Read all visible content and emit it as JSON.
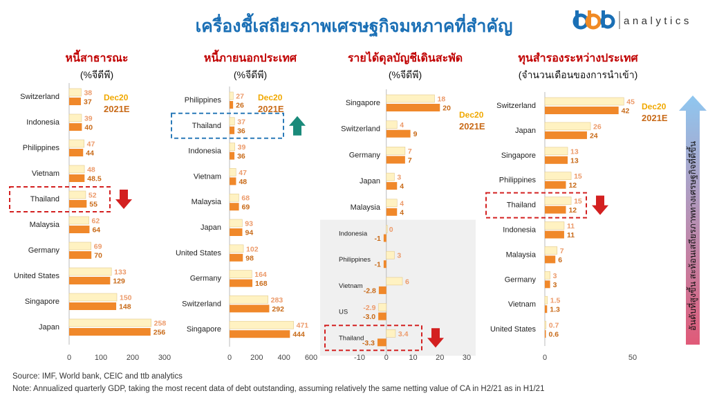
{
  "title": "เครื่องชี้เสถียรภาพเศรษฐกิจมหภาคที่สำคัญ",
  "logo": {
    "brand": "ttb",
    "text": "analytics"
  },
  "legend": {
    "series1": "Dec20",
    "series2": "2021E"
  },
  "side_label": "อันดับที่สูงขึ้น สะท้อนเสถียรภาพทางเศรษฐกิจที่ดีขึ้น",
  "colors": {
    "series1": "#fff2c2",
    "series2": "#f0882a",
    "label1": "#ec9a6a",
    "label2": "#c86a18",
    "title": "#c00000",
    "highlight": "#d32020",
    "blue_box": "#2a7ab8",
    "legend1": "#f0a800",
    "legend2": "#c86a18"
  },
  "chart_data": [
    {
      "type": "bar",
      "orientation": "horizontal",
      "title": "หนี้สาธารณะ",
      "subtitle": "(%จีดีพี)",
      "categories": [
        "Switzerland",
        "Indonesia",
        "Philippines",
        "Vietnam",
        "Thailand",
        "Malaysia",
        "Germany",
        "United States",
        "Singapore",
        "Japan"
      ],
      "series": [
        {
          "name": "Dec20",
          "values": [
            38,
            39,
            47,
            48,
            52,
            62,
            69,
            133,
            150,
            258
          ],
          "labels": [
            "38",
            "39",
            "47",
            "48",
            "52",
            "62",
            "69",
            "133",
            "150",
            "258"
          ]
        },
        {
          "name": "2021E",
          "values": [
            37,
            40,
            44,
            48.5,
            55,
            64,
            70,
            129,
            148,
            256
          ],
          "labels": [
            "37",
            "40",
            "44",
            "48.5",
            "55",
            "64",
            "70",
            "129",
            "148",
            "256"
          ]
        }
      ],
      "xlim": [
        0,
        300
      ],
      "xticks": [
        "0",
        "100",
        "200",
        "300"
      ],
      "highlight": "Thailand",
      "arrow": "down",
      "show_legend": true
    },
    {
      "type": "bar",
      "orientation": "horizontal",
      "title": "หนี้ภายนอกประเทศ",
      "subtitle": "(%จีดีพี)",
      "categories": [
        "Philippines",
        "Thailand",
        "Indonesia",
        "Vietnam",
        "Malaysia",
        "Japan",
        "United States",
        "Germany",
        "Switzerland",
        "Singapore"
      ],
      "series": [
        {
          "name": "Dec20",
          "values": [
            27,
            37,
            39,
            47,
            68,
            93,
            102,
            164,
            283,
            471
          ],
          "labels": [
            "27",
            "37",
            "39",
            "47",
            "68",
            "93",
            "102",
            "164",
            "283",
            "471"
          ]
        },
        {
          "name": "2021E",
          "values": [
            26,
            36,
            36,
            48,
            69,
            94,
            98,
            168,
            292,
            444
          ],
          "labels": [
            "26",
            "36",
            "36",
            "48",
            "69",
            "94",
            "98",
            "168",
            "292",
            "444"
          ]
        }
      ],
      "xlim": [
        0,
        600
      ],
      "xticks": [
        "0",
        "200",
        "400",
        "600"
      ],
      "highlight": "Thailand",
      "arrow": "up",
      "show_legend": true
    },
    {
      "type": "bar",
      "orientation": "horizontal",
      "title": "รายได้ดุลบัญชีเดินสะพัด",
      "subtitle": "(%จีดีพี)",
      "categories": [
        "Singapore",
        "Switzerland",
        "Germany",
        "Japan",
        "Malaysia",
        "Indonesia",
        "Philippines",
        "Vietnam",
        "US",
        "Thailand"
      ],
      "series": [
        {
          "name": "Dec20",
          "values": [
            18,
            4,
            7,
            3,
            4,
            0,
            3,
            6,
            -2.9,
            3.4
          ],
          "labels": [
            "18",
            "4",
            "7",
            "3",
            "4",
            "0",
            "3",
            "6",
            "-2.9",
            "3.4"
          ]
        },
        {
          "name": "2021E",
          "values": [
            20,
            9,
            7,
            4,
            4,
            -1,
            -1,
            -2.8,
            -3.0,
            -3.3
          ],
          "labels": [
            "20",
            "9",
            "7",
            "4",
            "4",
            "-1",
            "-1",
            "-2.8",
            "-3.0",
            "-3.3"
          ]
        }
      ],
      "xlim": [
        -10,
        30
      ],
      "xticks": [
        "-10",
        "0",
        "10",
        "20",
        "30"
      ],
      "highlight": "Thailand",
      "arrow": "down",
      "show_legend": true
    },
    {
      "type": "bar",
      "orientation": "horizontal",
      "title": "ทุนสำรองระหว่างประเทศ",
      "subtitle": "(จำนวนเดือนของการนำเข้า)",
      "categories": [
        "Switzerland",
        "Japan",
        "Singapore",
        "Philippines",
        "Thailand",
        "Indonesia",
        "Malaysia",
        "Germany",
        "Vietnam",
        "United States"
      ],
      "series": [
        {
          "name": "Dec20",
          "values": [
            45,
            26,
            13,
            15,
            15,
            11,
            7,
            3,
            1.5,
            0.7
          ],
          "labels": [
            "45",
            "26",
            "13",
            "15",
            "15",
            "11",
            "7",
            "3",
            "1.5",
            "0.7"
          ]
        },
        {
          "name": "2021E",
          "values": [
            42,
            24,
            13,
            12,
            12,
            11,
            6,
            3,
            1.3,
            0.6
          ],
          "labels": [
            "42",
            "24",
            "13",
            "12",
            "12",
            "11",
            "6",
            "3",
            "1.3",
            "0.6"
          ]
        }
      ],
      "xlim": [
        0,
        50
      ],
      "xticks": [
        "0",
        "50"
      ],
      "highlight": "Thailand",
      "arrow": "down",
      "show_legend": true
    }
  ],
  "footnotes": {
    "source": "Source: IMF, World bank, CEIC and ttb analytics",
    "note": "Note: Annualized quarterly GDP, taking the most recent data of debt outstanding, assuming relatively the same netting value of CA in H2/21 as in H1/21"
  }
}
